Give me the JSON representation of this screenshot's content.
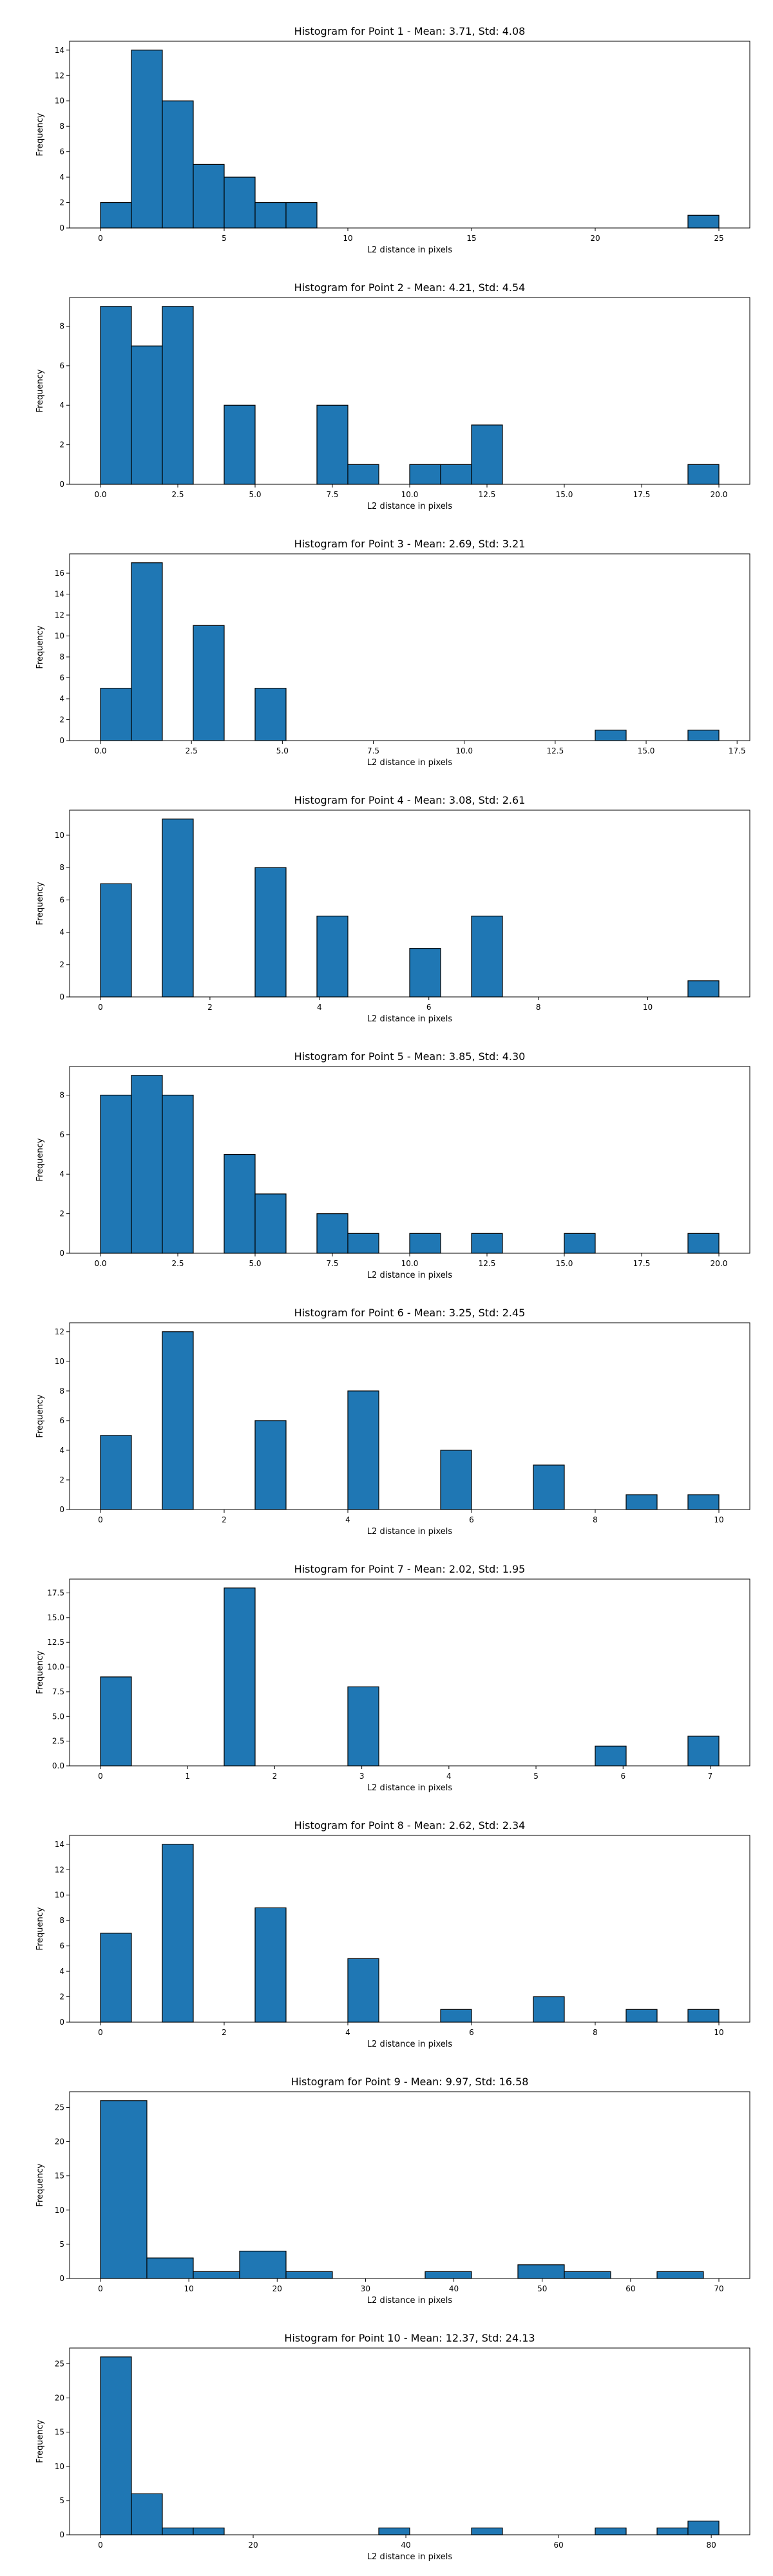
{
  "figure": {
    "bar_color": "#1f77b4",
    "edge_color": "#000000",
    "background": "#ffffff"
  },
  "chart_data": [
    {
      "type": "bar",
      "title": "Histogram for Point 1 - Mean: 3.71, Std: 4.08",
      "xlabel": "L2 distance in pixels",
      "ylabel": "Frequency",
      "xlim": [
        -1.25,
        26.25
      ],
      "ylim": [
        0,
        14.7
      ],
      "xticks": [
        0,
        5,
        10,
        15,
        20,
        25
      ],
      "xticklabels": [
        "0",
        "5",
        "10",
        "15",
        "20",
        "25"
      ],
      "yticks": [
        0,
        2,
        4,
        6,
        8,
        10,
        12,
        14
      ],
      "yticklabels": [
        "0",
        "2",
        "4",
        "6",
        "8",
        "10",
        "12",
        "14"
      ],
      "bins": [
        {
          "x0": 0.0,
          "x1": 1.25,
          "count": 2
        },
        {
          "x0": 1.25,
          "x1": 2.5,
          "count": 14
        },
        {
          "x0": 2.5,
          "x1": 3.75,
          "count": 10
        },
        {
          "x0": 3.75,
          "x1": 5.0,
          "count": 5
        },
        {
          "x0": 5.0,
          "x1": 6.25,
          "count": 4
        },
        {
          "x0": 6.25,
          "x1": 7.5,
          "count": 2
        },
        {
          "x0": 7.5,
          "x1": 8.75,
          "count": 2
        },
        {
          "x0": 23.75,
          "x1": 25.0,
          "count": 1
        }
      ]
    },
    {
      "type": "bar",
      "title": "Histogram for Point 2 - Mean: 4.21, Std: 4.54",
      "xlabel": "L2 distance in pixels",
      "ylabel": "Frequency",
      "xlim": [
        -1.0,
        21.0
      ],
      "ylim": [
        0,
        9.45
      ],
      "xticks": [
        0,
        2.5,
        5,
        7.5,
        10,
        12.5,
        15,
        17.5,
        20
      ],
      "xticklabels": [
        "0.0",
        "2.5",
        "5.0",
        "7.5",
        "10.0",
        "12.5",
        "15.0",
        "17.5",
        "20.0"
      ],
      "yticks": [
        0,
        2,
        4,
        6,
        8
      ],
      "yticklabels": [
        "0",
        "2",
        "4",
        "6",
        "8"
      ],
      "bins": [
        {
          "x0": 0.0,
          "x1": 1.0,
          "count": 9
        },
        {
          "x0": 1.0,
          "x1": 2.0,
          "count": 7
        },
        {
          "x0": 2.0,
          "x1": 3.0,
          "count": 9
        },
        {
          "x0": 4.0,
          "x1": 5.0,
          "count": 4
        },
        {
          "x0": 7.0,
          "x1": 8.0,
          "count": 4
        },
        {
          "x0": 8.0,
          "x1": 9.0,
          "count": 1
        },
        {
          "x0": 10.0,
          "x1": 11.0,
          "count": 1
        },
        {
          "x0": 11.0,
          "x1": 12.0,
          "count": 1
        },
        {
          "x0": 12.0,
          "x1": 13.0,
          "count": 3
        },
        {
          "x0": 19.0,
          "x1": 20.0,
          "count": 1
        }
      ]
    },
    {
      "type": "bar",
      "title": "Histogram for Point 3 - Mean: 2.69, Std: 3.21",
      "xlabel": "L2 distance in pixels",
      "ylabel": "Frequency",
      "xlim": [
        -0.85,
        17.85
      ],
      "ylim": [
        0,
        17.85
      ],
      "xticks": [
        0,
        2.5,
        5,
        7.5,
        10,
        12.5,
        15,
        17.5
      ],
      "xticklabels": [
        "0.0",
        "2.5",
        "5.0",
        "7.5",
        "10.0",
        "12.5",
        "15.0",
        "17.5"
      ],
      "yticks": [
        0,
        2,
        4,
        6,
        8,
        10,
        12,
        14,
        16
      ],
      "yticklabels": [
        "0",
        "2",
        "4",
        "6",
        "8",
        "10",
        "12",
        "14",
        "16"
      ],
      "bins": [
        {
          "x0": 0.0,
          "x1": 0.85,
          "count": 5
        },
        {
          "x0": 0.85,
          "x1": 1.7,
          "count": 17
        },
        {
          "x0": 2.55,
          "x1": 3.4,
          "count": 11
        },
        {
          "x0": 4.25,
          "x1": 5.1,
          "count": 5
        },
        {
          "x0": 13.6,
          "x1": 14.45,
          "count": 1
        },
        {
          "x0": 16.15,
          "x1": 17.0,
          "count": 1
        }
      ]
    },
    {
      "type": "bar",
      "title": "Histogram for Point 4 - Mean: 3.08, Std: 2.61",
      "xlabel": "L2 distance in pixels",
      "ylabel": "Frequency",
      "xlim": [
        -0.565,
        11.865
      ],
      "ylim": [
        0,
        11.55
      ],
      "xticks": [
        0,
        2,
        4,
        6,
        8,
        10
      ],
      "xticklabels": [
        "0",
        "2",
        "4",
        "6",
        "8",
        "10"
      ],
      "yticks": [
        0,
        2,
        4,
        6,
        8,
        10
      ],
      "yticklabels": [
        "0",
        "2",
        "4",
        "6",
        "8",
        "10"
      ],
      "bins": [
        {
          "x0": 0.0,
          "x1": 0.565,
          "count": 7
        },
        {
          "x0": 1.13,
          "x1": 1.695,
          "count": 11
        },
        {
          "x0": 2.825,
          "x1": 3.39,
          "count": 8
        },
        {
          "x0": 3.955,
          "x1": 4.52,
          "count": 5
        },
        {
          "x0": 5.65,
          "x1": 6.215,
          "count": 3
        },
        {
          "x0": 6.78,
          "x1": 7.345,
          "count": 5
        },
        {
          "x0": 10.735,
          "x1": 11.3,
          "count": 1
        }
      ]
    },
    {
      "type": "bar",
      "title": "Histogram for Point 5 - Mean: 3.85, Std: 4.30",
      "xlabel": "L2 distance in pixels",
      "ylabel": "Frequency",
      "xlim": [
        -1.0,
        21.0
      ],
      "ylim": [
        0,
        9.45
      ],
      "xticks": [
        0,
        2.5,
        5,
        7.5,
        10,
        12.5,
        15,
        17.5,
        20
      ],
      "xticklabels": [
        "0.0",
        "2.5",
        "5.0",
        "7.5",
        "10.0",
        "12.5",
        "15.0",
        "17.5",
        "20.0"
      ],
      "yticks": [
        0,
        2,
        4,
        6,
        8
      ],
      "yticklabels": [
        "0",
        "2",
        "4",
        "6",
        "8"
      ],
      "bins": [
        {
          "x0": 0.0,
          "x1": 1.0,
          "count": 8
        },
        {
          "x0": 1.0,
          "x1": 2.0,
          "count": 9
        },
        {
          "x0": 2.0,
          "x1": 3.0,
          "count": 8
        },
        {
          "x0": 4.0,
          "x1": 5.0,
          "count": 5
        },
        {
          "x0": 5.0,
          "x1": 6.0,
          "count": 3
        },
        {
          "x0": 7.0,
          "x1": 8.0,
          "count": 2
        },
        {
          "x0": 8.0,
          "x1": 9.0,
          "count": 1
        },
        {
          "x0": 10.0,
          "x1": 11.0,
          "count": 1
        },
        {
          "x0": 12.0,
          "x1": 13.0,
          "count": 1
        },
        {
          "x0": 15.0,
          "x1": 16.0,
          "count": 1
        },
        {
          "x0": 19.0,
          "x1": 20.0,
          "count": 1
        }
      ]
    },
    {
      "type": "bar",
      "title": "Histogram for Point 6 - Mean: 3.25, Std: 2.45",
      "xlabel": "L2 distance in pixels",
      "ylabel": "Frequency",
      "xlim": [
        -0.5,
        10.5
      ],
      "ylim": [
        0,
        12.6
      ],
      "xticks": [
        0,
        2,
        4,
        6,
        8,
        10
      ],
      "xticklabels": [
        "0",
        "2",
        "4",
        "6",
        "8",
        "10"
      ],
      "yticks": [
        0,
        2,
        4,
        6,
        8,
        10,
        12
      ],
      "yticklabels": [
        "0",
        "2",
        "4",
        "6",
        "8",
        "10",
        "12"
      ],
      "bins": [
        {
          "x0": 0.0,
          "x1": 0.5,
          "count": 5
        },
        {
          "x0": 1.0,
          "x1": 1.5,
          "count": 12
        },
        {
          "x0": 2.5,
          "x1": 3.0,
          "count": 6
        },
        {
          "x0": 4.0,
          "x1": 4.5,
          "count": 8
        },
        {
          "x0": 5.5,
          "x1": 6.0,
          "count": 4
        },
        {
          "x0": 7.0,
          "x1": 7.5,
          "count": 3
        },
        {
          "x0": 8.5,
          "x1": 9.0,
          "count": 1
        },
        {
          "x0": 9.5,
          "x1": 10.0,
          "count": 1
        }
      ]
    },
    {
      "type": "bar",
      "title": "Histogram for Point 7 - Mean: 2.02, Std: 1.95",
      "xlabel": "L2 distance in pixels",
      "ylabel": "Frequency",
      "xlim": [
        -0.355,
        7.455
      ],
      "ylim": [
        0,
        18.9
      ],
      "xticks": [
        0,
        1,
        2,
        3,
        4,
        5,
        6,
        7
      ],
      "xticklabels": [
        "0",
        "1",
        "2",
        "3",
        "4",
        "5",
        "6",
        "7"
      ],
      "yticks": [
        0,
        2.5,
        5,
        7.5,
        10,
        12.5,
        15,
        17.5
      ],
      "yticklabels": [
        "0.0",
        "2.5",
        "5.0",
        "7.5",
        "10.0",
        "12.5",
        "15.0",
        "17.5"
      ],
      "bins": [
        {
          "x0": 0.0,
          "x1": 0.355,
          "count": 9
        },
        {
          "x0": 1.42,
          "x1": 1.775,
          "count": 18
        },
        {
          "x0": 2.84,
          "x1": 3.195,
          "count": 8
        },
        {
          "x0": 5.68,
          "x1": 6.035,
          "count": 2
        },
        {
          "x0": 6.745,
          "x1": 7.1,
          "count": 3
        }
      ]
    },
    {
      "type": "bar",
      "title": "Histogram for Point 8 - Mean: 2.62, Std: 2.34",
      "xlabel": "L2 distance in pixels",
      "ylabel": "Frequency",
      "xlim": [
        -0.5,
        10.5
      ],
      "ylim": [
        0,
        14.7
      ],
      "xticks": [
        0,
        2,
        4,
        6,
        8,
        10
      ],
      "xticklabels": [
        "0",
        "2",
        "4",
        "6",
        "8",
        "10"
      ],
      "yticks": [
        0,
        2,
        4,
        6,
        8,
        10,
        12,
        14
      ],
      "yticklabels": [
        "0",
        "2",
        "4",
        "6",
        "8",
        "10",
        "12",
        "14"
      ],
      "bins": [
        {
          "x0": 0.0,
          "x1": 0.5,
          "count": 7
        },
        {
          "x0": 1.0,
          "x1": 1.5,
          "count": 14
        },
        {
          "x0": 2.5,
          "x1": 3.0,
          "count": 9
        },
        {
          "x0": 4.0,
          "x1": 4.5,
          "count": 5
        },
        {
          "x0": 5.5,
          "x1": 6.0,
          "count": 1
        },
        {
          "x0": 7.0,
          "x1": 7.5,
          "count": 2
        },
        {
          "x0": 8.5,
          "x1": 9.0,
          "count": 1
        },
        {
          "x0": 9.5,
          "x1": 10.0,
          "count": 1
        }
      ]
    },
    {
      "type": "bar",
      "title": "Histogram for Point 9 - Mean: 9.97, Std: 16.58",
      "xlabel": "L2 distance in pixels",
      "ylabel": "Frequency",
      "xlim": [
        -3.5,
        73.5
      ],
      "ylim": [
        0,
        27.3
      ],
      "xticks": [
        0,
        10,
        20,
        30,
        40,
        50,
        60,
        70
      ],
      "xticklabels": [
        "0",
        "10",
        "20",
        "30",
        "40",
        "50",
        "60",
        "70"
      ],
      "yticks": [
        0,
        5,
        10,
        15,
        20,
        25
      ],
      "yticklabels": [
        "0",
        "5",
        "10",
        "15",
        "20",
        "25"
      ],
      "bins": [
        {
          "x0": 0.0,
          "x1": 5.25,
          "count": 26
        },
        {
          "x0": 5.25,
          "x1": 10.5,
          "count": 3
        },
        {
          "x0": 10.5,
          "x1": 15.75,
          "count": 1
        },
        {
          "x0": 15.75,
          "x1": 21.0,
          "count": 4
        },
        {
          "x0": 21.0,
          "x1": 26.25,
          "count": 1
        },
        {
          "x0": 36.75,
          "x1": 42.0,
          "count": 1
        },
        {
          "x0": 47.25,
          "x1": 52.5,
          "count": 2
        },
        {
          "x0": 52.5,
          "x1": 57.75,
          "count": 1
        },
        {
          "x0": 63.0,
          "x1": 68.25,
          "count": 1
        }
      ]
    },
    {
      "type": "bar",
      "title": "Histogram for Point 10 - Mean: 12.37, Std: 24.13",
      "xlabel": "L2 distance in pixels",
      "ylabel": "Frequency",
      "xlim": [
        -4.05,
        85.05
      ],
      "ylim": [
        0,
        27.3
      ],
      "xticks": [
        0,
        20,
        40,
        60,
        80
      ],
      "xticklabels": [
        "0",
        "20",
        "40",
        "60",
        "80"
      ],
      "yticks": [
        0,
        5,
        10,
        15,
        20,
        25
      ],
      "yticklabels": [
        "0",
        "5",
        "10",
        "15",
        "20",
        "25"
      ],
      "bins": [
        {
          "x0": 0.0,
          "x1": 4.05,
          "count": 26
        },
        {
          "x0": 4.05,
          "x1": 8.1,
          "count": 6
        },
        {
          "x0": 8.1,
          "x1": 12.15,
          "count": 1
        },
        {
          "x0": 12.15,
          "x1": 16.2,
          "count": 1
        },
        {
          "x0": 36.45,
          "x1": 40.5,
          "count": 1
        },
        {
          "x0": 48.6,
          "x1": 52.65,
          "count": 1
        },
        {
          "x0": 64.8,
          "x1": 68.85,
          "count": 1
        },
        {
          "x0": 72.9,
          "x1": 76.95,
          "count": 1
        },
        {
          "x0": 76.95,
          "x1": 81.0,
          "count": 2
        }
      ]
    }
  ]
}
